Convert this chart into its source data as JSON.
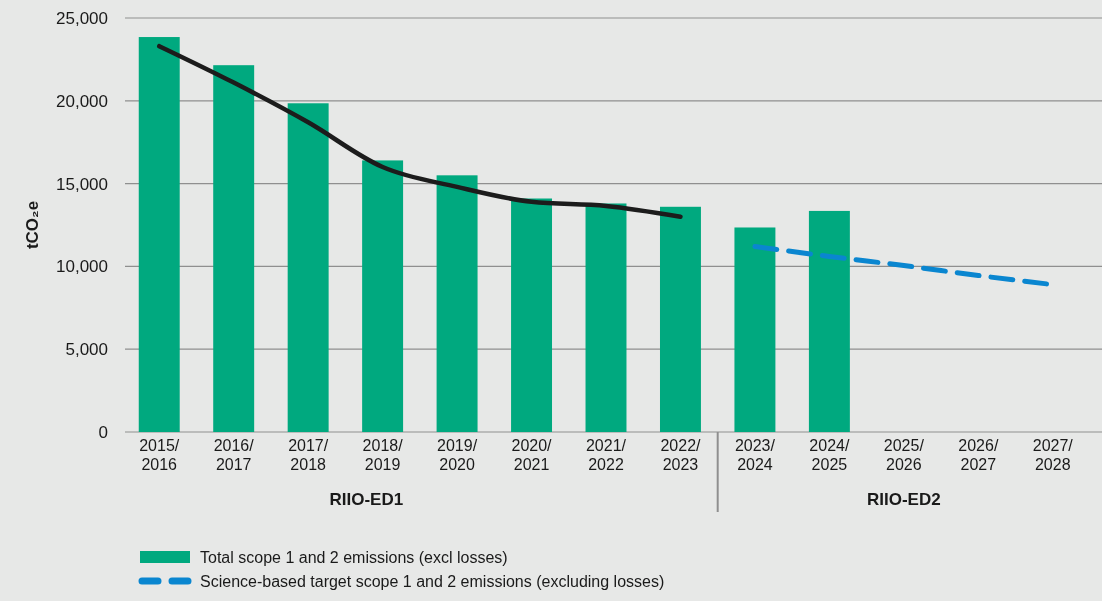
{
  "chart_data": {
    "type": "bar",
    "ylabel": "tCO₂e",
    "categories": [
      "2015/2016",
      "2016/2017",
      "2017/2018",
      "2018/2019",
      "2019/2020",
      "2020/2021",
      "2021/2022",
      "2022/2023",
      "2023/2024",
      "2024/2025",
      "2025/2026",
      "2026/2027",
      "2027/2028"
    ],
    "series": [
      {
        "name": "Total scope 1 and 2 emissions (excl losses)",
        "color": "#00a97f",
        "values": [
          23850,
          22150,
          19850,
          16400,
          15500,
          14100,
          13800,
          13600,
          12350,
          13350,
          null,
          null,
          null
        ]
      },
      {
        "type": "line",
        "color": "#1c1c1c",
        "values": [
          23300,
          21100,
          18700,
          16000,
          14800,
          13900,
          13650,
          13000,
          null,
          null,
          null,
          null,
          null
        ]
      },
      {
        "name": "Science-based target scope 1 and 2 emissions (excluding losses)",
        "type": "line",
        "line_style": "dashed",
        "color": "#0a86d0",
        "values": [
          null,
          null,
          null,
          null,
          null,
          null,
          null,
          null,
          11200,
          10600,
          10050,
          9450,
          8900
        ]
      }
    ],
    "ylim": [
      0,
      25000
    ],
    "yticks": [
      {
        "value": 0,
        "label": "0"
      },
      {
        "value": 5000,
        "label": "5,000"
      },
      {
        "value": 10000,
        "label": "10,000"
      },
      {
        "value": 15000,
        "label": "15,000"
      },
      {
        "value": 20000,
        "label": "20,000"
      },
      {
        "value": 25000,
        "label": "25,000"
      }
    ],
    "grid": "y",
    "legend": "bottom",
    "annotations": [
      "RIIO-ED1",
      "RIIO-ED2"
    ]
  }
}
